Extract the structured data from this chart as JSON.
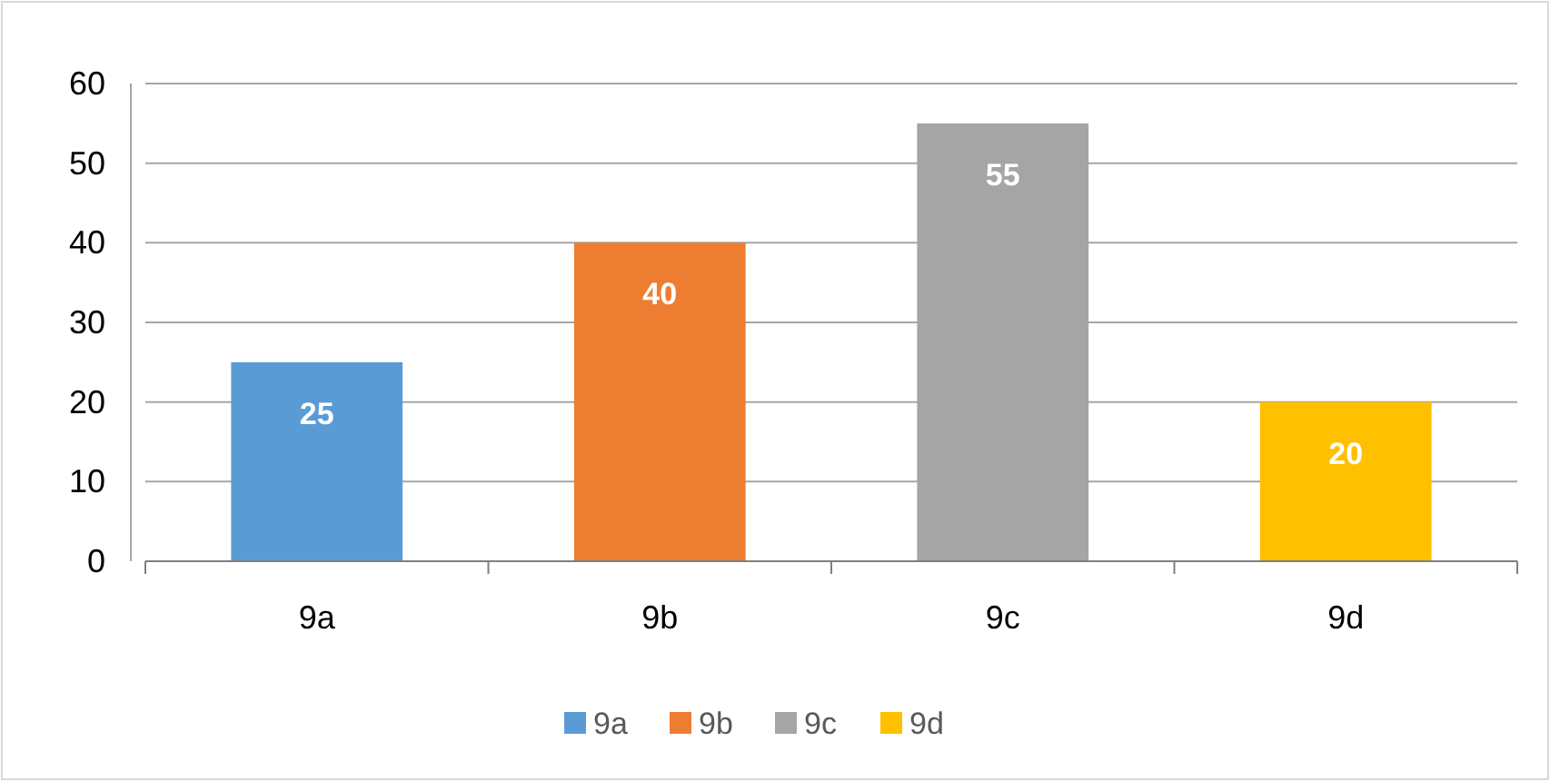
{
  "chart_data": {
    "type": "bar",
    "categories": [
      "9a",
      "9b",
      "9c",
      "9d"
    ],
    "stacked": true,
    "series": [
      {
        "name": "9a",
        "color": "#5b9bd5",
        "values": [
          25,
          null,
          null,
          null
        ]
      },
      {
        "name": "9b",
        "color": "#ed7d31",
        "values": [
          null,
          40,
          null,
          null
        ]
      },
      {
        "name": "9c",
        "color": "#a5a5a5",
        "values": [
          null,
          null,
          55,
          null
        ]
      },
      {
        "name": "9d",
        "color": "#ffc000",
        "values": [
          null,
          null,
          null,
          20
        ]
      }
    ],
    "ylim": [
      0,
      60
    ],
    "yticks": [
      0,
      10,
      20,
      30,
      40,
      50,
      60
    ],
    "grid": "y",
    "data_labels": true,
    "legend": "bottom"
  }
}
